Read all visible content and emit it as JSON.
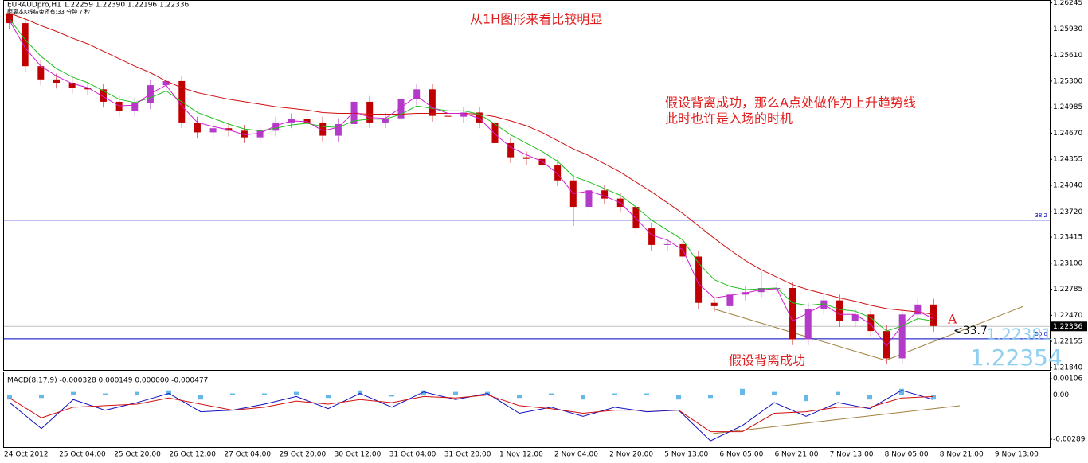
{
  "chart_data": [
    {
      "type": "candlestick",
      "title": "EURAUDpro,H1  1.22259 1.22390 1.22196 1.22336",
      "subtitle": "距离本K线结束还有:33 分钟 7 秒",
      "x_labels": [
        "24 Oct 2012",
        "25 Oct 04:00",
        "25 Oct 20:00",
        "26 Oct 12:00",
        "27 Oct 04:00",
        "29 Oct 20:00",
        "30 Oct 12:00",
        "31 Oct 04:00",
        "31 Oct 20:00",
        "1 Nov 12:00",
        "2 Nov 04:00",
        "2 Nov 20:00",
        "5 Nov 13:00",
        "6 Nov 05:00",
        "6 Nov 21:00",
        "7 Nov 13:00",
        "8 Nov 05:00",
        "8 Nov 21:00",
        "9 Nov 13:00"
      ],
      "open": [
        1.2612,
        1.26,
        1.2548,
        1.2532,
        1.2528,
        1.2522,
        1.252,
        1.2505,
        1.2494,
        1.2503,
        1.2525,
        1.253,
        1.248,
        1.2468,
        1.2473,
        1.247,
        1.2462,
        1.247,
        1.248,
        1.2484,
        1.248,
        1.2464,
        1.2478,
        1.2505,
        1.248,
        1.2485,
        1.2508,
        1.252,
        1.2488,
        1.2487,
        1.2492,
        1.248,
        1.2455,
        1.2438,
        1.2436,
        1.2428,
        1.241,
        1.2378,
        1.2398,
        1.2388,
        1.2378,
        1.2352,
        1.2332,
        1.2333,
        1.2318,
        1.2262,
        1.2258,
        1.2272,
        1.2275,
        1.228,
        1.228,
        1.2218,
        1.2255,
        1.2265,
        1.224,
        1.2248,
        1.2228,
        1.2195,
        1.2248,
        1.226
      ],
      "high": [
        1.2619,
        1.2607,
        1.2555,
        1.2539,
        1.2535,
        1.2529,
        1.2527,
        1.2512,
        1.251,
        1.2532,
        1.2537,
        1.2537,
        1.2487,
        1.248,
        1.248,
        1.2477,
        1.2477,
        1.2487,
        1.2491,
        1.2491,
        1.2487,
        1.2485,
        1.2512,
        1.2512,
        1.2492,
        1.2515,
        1.2527,
        1.2527,
        1.2495,
        1.2499,
        1.2499,
        1.2487,
        1.2462,
        1.2445,
        1.2443,
        1.2435,
        1.2417,
        1.2405,
        1.2405,
        1.2395,
        1.2385,
        1.2359,
        1.234,
        1.234,
        1.2325,
        1.2269,
        1.2279,
        1.2282,
        1.23,
        1.2287,
        1.2287,
        1.2262,
        1.2272,
        1.2272,
        1.2255,
        1.2255,
        1.2235,
        1.2255,
        1.2267,
        1.2267
      ],
      "low": [
        1.2593,
        1.2541,
        1.2525,
        1.2521,
        1.2515,
        1.2513,
        1.2498,
        1.2487,
        1.2487,
        1.2496,
        1.2518,
        1.2473,
        1.2461,
        1.2461,
        1.2463,
        1.2455,
        1.2455,
        1.2463,
        1.2473,
        1.2473,
        1.2457,
        1.2457,
        1.2471,
        1.2473,
        1.2473,
        1.2478,
        1.2501,
        1.2481,
        1.248,
        1.248,
        1.2473,
        1.2448,
        1.2431,
        1.2429,
        1.2421,
        1.2403,
        1.2355,
        1.2371,
        1.2381,
        1.2371,
        1.2345,
        1.2325,
        1.2325,
        1.2311,
        1.2255,
        1.2251,
        1.2251,
        1.2265,
        1.2268,
        1.2273,
        1.2211,
        1.2211,
        1.2248,
        1.2233,
        1.2233,
        1.2221,
        1.2188,
        1.2188,
        1.2241,
        1.2227
      ],
      "close": [
        1.26,
        1.2548,
        1.2532,
        1.2528,
        1.2522,
        1.252,
        1.2505,
        1.2494,
        1.2503,
        1.2525,
        1.253,
        1.248,
        1.2468,
        1.2473,
        1.247,
        1.2462,
        1.247,
        1.248,
        1.2484,
        1.248,
        1.2464,
        1.2478,
        1.2505,
        1.248,
        1.2485,
        1.2508,
        1.252,
        1.2488,
        1.2487,
        1.2492,
        1.248,
        1.2455,
        1.2438,
        1.2436,
        1.2428,
        1.241,
        1.2378,
        1.2398,
        1.2388,
        1.2378,
        1.2352,
        1.2332,
        1.2333,
        1.2318,
        1.2262,
        1.2258,
        1.2272,
        1.2275,
        1.228,
        1.228,
        1.2218,
        1.2255,
        1.2265,
        1.224,
        1.2248,
        1.2228,
        1.2195,
        1.2248,
        1.226,
        1.2234
      ],
      "up_color": "#b23cc8",
      "down_color": "#c00000",
      "lines": [
        {
          "color": "#d01010",
          "values": [
            1.2612,
            1.2605,
            1.2597,
            1.259,
            1.2582,
            1.2575,
            1.2566,
            1.2557,
            1.2548,
            1.254,
            1.253,
            1.2522,
            1.2516,
            1.2512,
            1.2508,
            1.2505,
            1.2502,
            1.2499,
            1.2497,
            1.2495,
            1.2492,
            1.2491,
            1.2491,
            1.249,
            1.249,
            1.249,
            1.2491,
            1.2491,
            1.2491,
            1.2491,
            1.249,
            1.2487,
            1.2482,
            1.2476,
            1.2468,
            1.2458,
            1.2448,
            1.244,
            1.243,
            1.242,
            1.2408,
            1.2396,
            1.2383,
            1.237,
            1.2355,
            1.234,
            1.2326,
            1.2313,
            1.2302,
            1.2293,
            1.2284,
            1.2278,
            1.2273,
            1.2268,
            1.2264,
            1.2259,
            1.2255,
            1.2253,
            1.2251,
            1.2248
          ]
        },
        {
          "color": "#20c020",
          "values": [
            1.2605,
            1.258,
            1.256,
            1.2545,
            1.2535,
            1.2528,
            1.2518,
            1.2508,
            1.2504,
            1.251,
            1.2518,
            1.2505,
            1.2492,
            1.2485,
            1.2478,
            1.2472,
            1.247,
            1.2473,
            1.2477,
            1.2479,
            1.2475,
            1.2474,
            1.2482,
            1.2484,
            1.2484,
            1.249,
            1.25,
            1.2497,
            1.2494,
            1.2494,
            1.249,
            1.2478,
            1.2465,
            1.2455,
            1.2445,
            1.2433,
            1.2415,
            1.2408,
            1.24,
            1.2392,
            1.2378,
            1.2362,
            1.235,
            1.2338,
            1.231,
            1.229,
            1.2282,
            1.2278,
            1.2279,
            1.228,
            1.2262,
            1.2259,
            1.2261,
            1.2254,
            1.2252,
            1.2244,
            1.2228,
            1.2234,
            1.2243,
            1.224
          ]
        },
        {
          "color": "#d020d0",
          "values": [
            1.2603,
            1.257,
            1.2548,
            1.2536,
            1.2527,
            1.2522,
            1.2511,
            1.25,
            1.2501,
            1.2515,
            1.2525,
            1.25,
            1.248,
            1.2475,
            1.2471,
            1.2465,
            1.2467,
            1.2476,
            1.2482,
            1.2481,
            1.247,
            1.2474,
            1.2493,
            1.2486,
            1.2485,
            1.2498,
            1.2512,
            1.2498,
            1.2491,
            1.2491,
            1.2485,
            1.2466,
            1.245,
            1.2441,
            1.2433,
            1.2418,
            1.2394,
            1.2397,
            1.2391,
            1.2383,
            1.2364,
            1.2344,
            1.2338,
            1.2326,
            1.2285,
            1.2268,
            1.2271,
            1.2274,
            1.2278,
            1.2279,
            1.224,
            1.225,
            1.226,
            1.2248,
            1.2248,
            1.2236,
            1.221,
            1.2235,
            1.2252,
            1.2243
          ]
        }
      ],
      "ylim": [
        1.2181,
        1.2627
      ],
      "yticks": [
        1.26245,
        {
          "value": 1.2593,
          "label": "1.25930"
        },
        {
          "value": 1.2561,
          "label": "1.25610"
        },
        {
          "value": 1.253,
          "label": "1.25300"
        },
        1.24985,
        {
          "value": 1.2467,
          "label": "1.24670"
        },
        1.24355,
        {
          "value": 1.2404,
          "label": "1.24040"
        },
        {
          "value": 1.2372,
          "label": "1.23720"
        },
        1.23415,
        {
          "value": 1.231,
          "label": "1.23100"
        },
        1.22785,
        {
          "value": 1.2247,
          "label": "1.22470"
        },
        1.22155,
        {
          "value": 1.2184,
          "label": "1.21840"
        }
      ],
      "hlines": [
        {
          "value": 1.23619,
          "label": "38.2",
          "color": "#0000c0"
        },
        {
          "value": 1.22186,
          "label": "50.0",
          "color": "#0000c0"
        }
      ],
      "current_price": 1.22336,
      "annotations": [
        "从1H图形来看比较明显",
        "假设背离成功，那么A点处做作为上升趋势线",
        "此时也许是入场的时机",
        "假设背离成功",
        "A",
        "<33.7",
        "1.22381",
        "1.22354"
      ]
    },
    {
      "type": "macd",
      "title": "MACD(8,17,9) -0.000328 0.000149 0.000000 -0.000477",
      "histogram": {
        "color": "#66b8e8",
        "values": [
          -0.0003,
          -0.0002,
          0.0002,
          0.0001,
          0.0002,
          0.0003,
          -0.0003,
          0.0001,
          0.0001,
          0.0002,
          -0.0002,
          0.0003,
          -0.0001,
          0.0003,
          0.0002,
          0.0002,
          -0.0002,
          0.0001,
          -0.0003,
          0.0001,
          0.0001,
          -0.0003,
          -0.0002,
          0.0004,
          0.0002,
          -0.0004,
          0.0002,
          -0.0003,
          0.0004,
          -0.0003
        ]
      },
      "lines": [
        {
          "color": "#1010c0",
          "values": [
            -0.0005,
            -0.0022,
            -0.0003,
            -0.001,
            -0.0005,
            0.0001,
            -0.0011,
            -0.001,
            -0.0006,
            -0.0001,
            -0.0009,
            0.0001,
            -0.0008,
            0.0002,
            -0.0003,
            0.0001,
            -0.0012,
            -0.0008,
            -0.0014,
            -0.0008,
            -0.0011,
            -0.001,
            -0.003,
            -0.002,
            -0.0005,
            -0.0014,
            -0.0005,
            -0.0009,
            0.0003,
            -0.0003
          ]
        },
        {
          "color": "#d01010",
          "values": [
            -0.0002,
            -0.0015,
            -0.0008,
            -0.0007,
            -0.0006,
            -0.0002,
            -0.0006,
            -0.001,
            -0.0008,
            -0.0004,
            -0.0006,
            -0.0003,
            -0.0005,
            -0.0001,
            -0.0002,
            0.0,
            -0.0007,
            -0.0009,
            -0.0012,
            -0.001,
            -0.001,
            -0.001,
            -0.0024,
            -0.0024,
            -0.0012,
            -0.0011,
            -0.0008,
            -0.0008,
            -0.0002,
            -0.0001
          ]
        }
      ],
      "ylim": [
        -0.00341,
        0.00148
      ],
      "yticks": [
        0.00106,
        {
          "value": 0,
          "label": "0.00"
        },
        -0.00289
      ]
    }
  ]
}
